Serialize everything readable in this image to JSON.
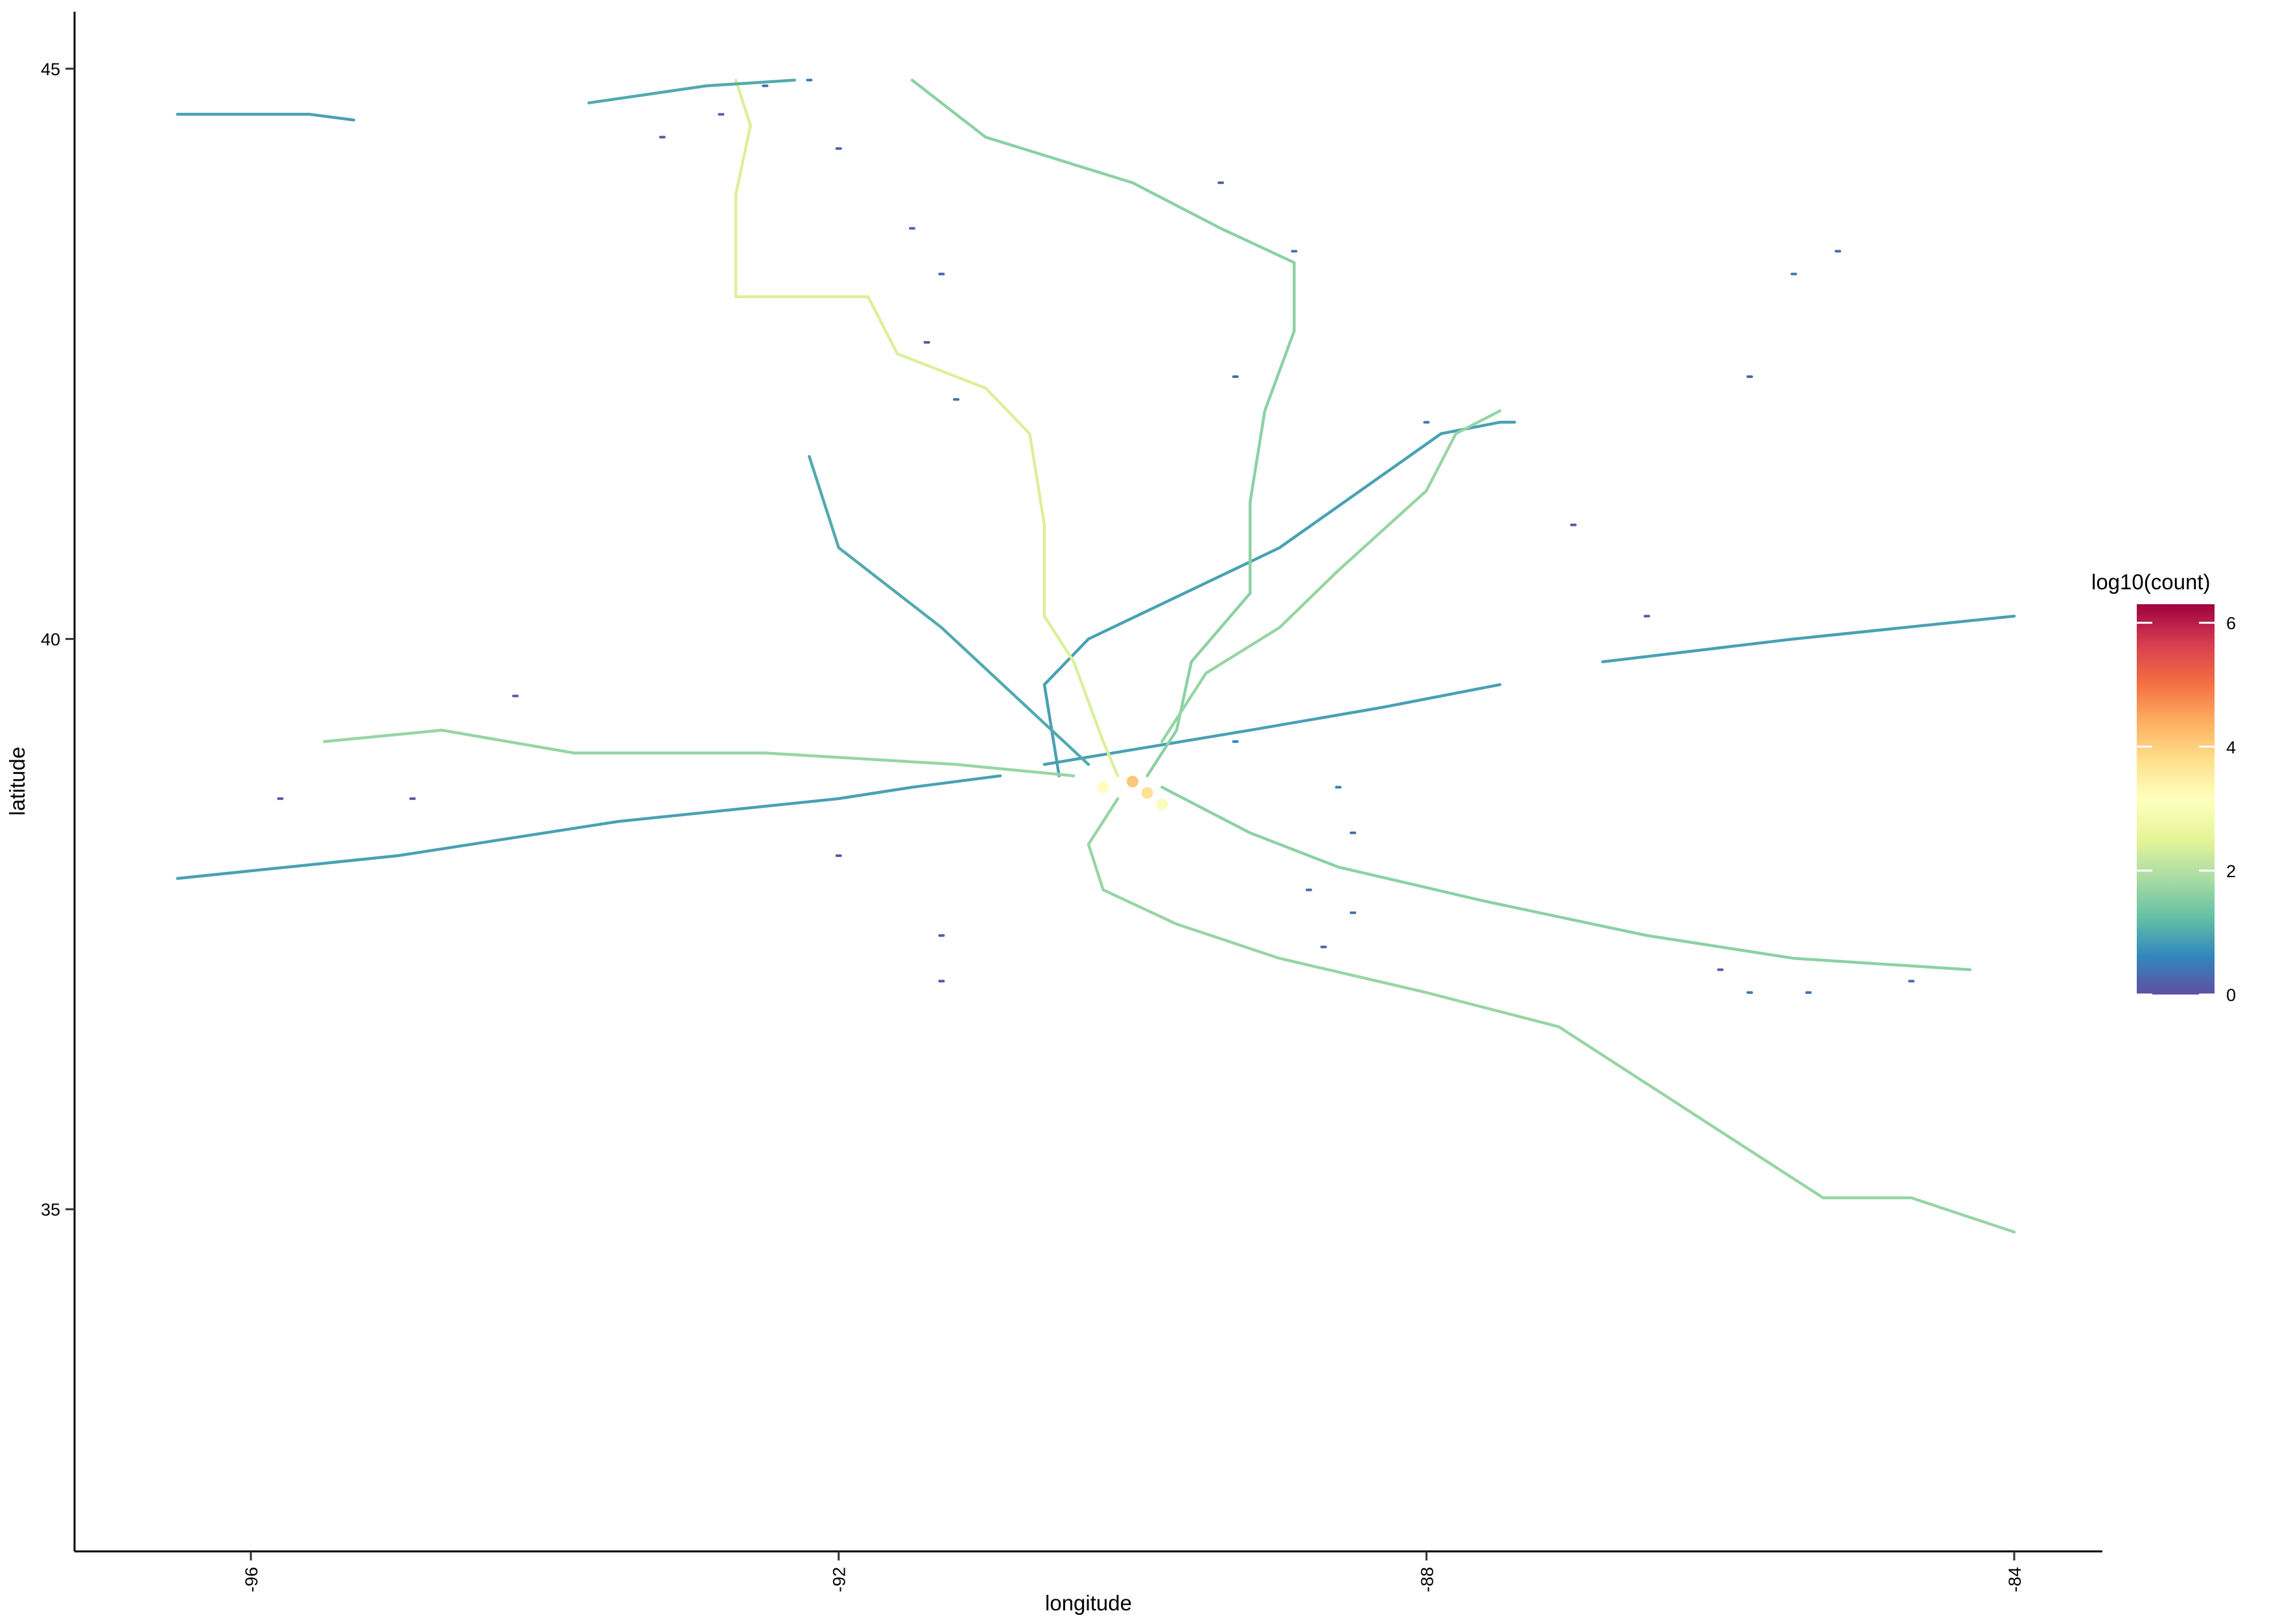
{
  "chart_data": {
    "type": "scatter",
    "xlabel": "longitude",
    "ylabel": "latitude",
    "xlim": [
      -97.2,
      -83.4
    ],
    "ylim": [
      32.0,
      45.5
    ],
    "x_ticks": [
      -96,
      -92,
      -88,
      -84
    ],
    "x_tick_labels": [
      "-96",
      "-92",
      "-88",
      "-84"
    ],
    "y_ticks": [
      35,
      40,
      45
    ],
    "y_tick_labels": [
      "35",
      "40",
      "45"
    ],
    "grid": false,
    "legend": {
      "title": "log10(count)",
      "placement": "right",
      "min": 0,
      "max": 6.3,
      "ticks": [
        0,
        2,
        4,
        6
      ],
      "tick_labels": [
        "0",
        "2",
        "4",
        "6"
      ],
      "colors": [
        "#5E4FA2",
        "#3288BD",
        "#66C2A5",
        "#ABDDA4",
        "#E6F598",
        "#FFFFBF",
        "#FEE08B",
        "#FDAE61",
        "#F46D43",
        "#D53E4F",
        "#9E0142"
      ]
    },
    "series": [
      {
        "log10_count": 0.9,
        "points": [
          [
            -96.5,
            37.9
          ],
          [
            -95.0,
            38.1
          ],
          [
            -93.5,
            38.4
          ],
          [
            -92.0,
            38.6
          ],
          [
            -91.5,
            38.7
          ],
          [
            -90.9,
            38.8
          ]
        ]
      },
      {
        "log10_count": 0.9,
        "points": [
          [
            -90.6,
            38.9
          ],
          [
            -89.2,
            39.2
          ],
          [
            -88.3,
            39.4
          ],
          [
            -87.5,
            39.6
          ]
        ]
      },
      {
        "log10_count": 0.9,
        "points": [
          [
            -86.8,
            39.8
          ],
          [
            -85.5,
            40.0
          ],
          [
            -84.0,
            40.2
          ]
        ]
      },
      {
        "log10_count": 0.9,
        "points": [
          [
            -90.5,
            38.8
          ],
          [
            -90.6,
            39.6
          ],
          [
            -90.3,
            40.0
          ],
          [
            -89.0,
            40.8
          ],
          [
            -87.9,
            41.8
          ],
          [
            -87.5,
            41.9
          ],
          [
            -87.4,
            41.9
          ]
        ]
      },
      {
        "log10_count": 1.0,
        "points": [
          [
            -92.2,
            41.6
          ],
          [
            -92.0,
            40.8
          ],
          [
            -91.3,
            40.1
          ],
          [
            -90.8,
            39.5
          ],
          [
            -90.3,
            38.9
          ]
        ]
      },
      {
        "log10_count": 1.7,
        "points": [
          [
            -95.5,
            39.1
          ],
          [
            -94.7,
            39.2
          ],
          [
            -93.8,
            39.0
          ],
          [
            -92.5,
            39.0
          ],
          [
            -91.2,
            38.9
          ],
          [
            -90.4,
            38.8
          ]
        ]
      },
      {
        "log10_count": 2.4,
        "points": [
          [
            -92.7,
            44.9
          ],
          [
            -92.6,
            44.5
          ],
          [
            -92.7,
            43.9
          ],
          [
            -92.7,
            43.0
          ],
          [
            -91.8,
            43.0
          ],
          [
            -91.6,
            42.5
          ],
          [
            -91.0,
            42.2
          ],
          [
            -90.7,
            41.8
          ],
          [
            -90.6,
            41.0
          ],
          [
            -90.6,
            40.2
          ],
          [
            -90.4,
            39.8
          ],
          [
            -90.2,
            39.1
          ],
          [
            -90.1,
            38.8
          ]
        ]
      },
      {
        "log10_count": 1.6,
        "points": [
          [
            -91.5,
            44.9
          ],
          [
            -91.0,
            44.4
          ],
          [
            -90.0,
            44.0
          ],
          [
            -89.4,
            43.6
          ],
          [
            -88.9,
            43.3
          ],
          [
            -88.9,
            42.7
          ],
          [
            -89.1,
            42.0
          ],
          [
            -89.2,
            41.2
          ],
          [
            -89.2,
            40.4
          ],
          [
            -89.6,
            39.8
          ],
          [
            -89.7,
            39.2
          ],
          [
            -89.9,
            38.8
          ]
        ]
      },
      {
        "log10_count": 1.7,
        "points": [
          [
            -87.5,
            42.0
          ],
          [
            -87.8,
            41.8
          ],
          [
            -88.0,
            41.3
          ],
          [
            -88.6,
            40.6
          ],
          [
            -89.0,
            40.1
          ],
          [
            -89.5,
            39.7
          ],
          [
            -89.8,
            39.1
          ]
        ]
      },
      {
        "log10_count": 1.6,
        "points": [
          [
            -89.8,
            38.7
          ],
          [
            -89.2,
            38.3
          ],
          [
            -88.6,
            38.0
          ],
          [
            -87.6,
            37.7
          ],
          [
            -86.5,
            37.4
          ],
          [
            -85.5,
            37.2
          ],
          [
            -84.3,
            37.1
          ]
        ]
      },
      {
        "log10_count": 1.7,
        "points": [
          [
            -90.1,
            38.6
          ],
          [
            -90.3,
            38.2
          ],
          [
            -90.2,
            37.8
          ],
          [
            -89.7,
            37.5
          ],
          [
            -89.0,
            37.2
          ],
          [
            -88.0,
            36.9
          ],
          [
            -87.1,
            36.6
          ],
          [
            -86.5,
            36.1
          ],
          [
            -85.9,
            35.6
          ],
          [
            -85.3,
            35.1
          ],
          [
            -84.7,
            35.1
          ],
          [
            -84.0,
            34.8
          ]
        ]
      },
      {
        "log10_count": 0.9,
        "points": [
          [
            -96.5,
            44.6
          ],
          [
            -95.6,
            44.6
          ],
          [
            -95.3,
            44.55
          ]
        ]
      },
      {
        "log10_count": 1.0,
        "points": [
          [
            -93.7,
            44.7
          ],
          [
            -92.9,
            44.85
          ],
          [
            -92.3,
            44.9
          ]
        ]
      }
    ],
    "hotspots": [
      {
        "lon": -90.0,
        "lat": 38.75,
        "log10_count": 4.2
      },
      {
        "lon": -89.9,
        "lat": 38.65,
        "log10_count": 3.8
      },
      {
        "lon": -90.2,
        "lat": 38.7,
        "log10_count": 3.2
      },
      {
        "lon": -89.8,
        "lat": 38.55,
        "log10_count": 3.0
      }
    ],
    "scattered_points": [
      [
        -92.5,
        44.85,
        0.3
      ],
      [
        -92.2,
        44.9,
        0.5
      ],
      [
        -92.8,
        44.6,
        0.2
      ],
      [
        -93.2,
        44.4,
        0.1
      ],
      [
        -92.0,
        44.3,
        0.2
      ],
      [
        -91.5,
        43.6,
        0.3
      ],
      [
        -91.3,
        43.2,
        0.2
      ],
      [
        -91.4,
        42.6,
        0.1
      ],
      [
        -91.2,
        42.1,
        0.4
      ],
      [
        -89.3,
        42.3,
        0.3
      ],
      [
        -88.0,
        41.9,
        0.5
      ],
      [
        -87.0,
        41.0,
        0.1
      ],
      [
        -86.5,
        40.2,
        0.2
      ],
      [
        -85.8,
        42.3,
        0.2
      ],
      [
        -85.5,
        43.2,
        0.5
      ],
      [
        -85.2,
        43.4,
        0.3
      ],
      [
        -94.9,
        38.6,
        0.1
      ],
      [
        -92.0,
        38.1,
        0.1
      ],
      [
        -91.3,
        37.4,
        0.2
      ],
      [
        -91.3,
        37.0,
        0.1
      ],
      [
        -88.8,
        37.8,
        0.3
      ],
      [
        -88.5,
        37.6,
        0.4
      ],
      [
        -88.7,
        37.3,
        0.2
      ],
      [
        -88.6,
        38.7,
        0.5
      ],
      [
        -88.5,
        38.3,
        0.3
      ],
      [
        -89.3,
        39.1,
        0.6
      ],
      [
        -85.8,
        36.9,
        0.5
      ],
      [
        -85.4,
        36.9,
        0.4
      ],
      [
        -84.7,
        37.0,
        0.3
      ],
      [
        -86.0,
        37.1,
        0.2
      ],
      [
        -88.9,
        43.4,
        0.4
      ],
      [
        -95.8,
        38.6,
        0.1
      ],
      [
        -94.2,
        39.5,
        0.1
      ],
      [
        -89.4,
        44.0,
        0.2
      ]
    ]
  }
}
